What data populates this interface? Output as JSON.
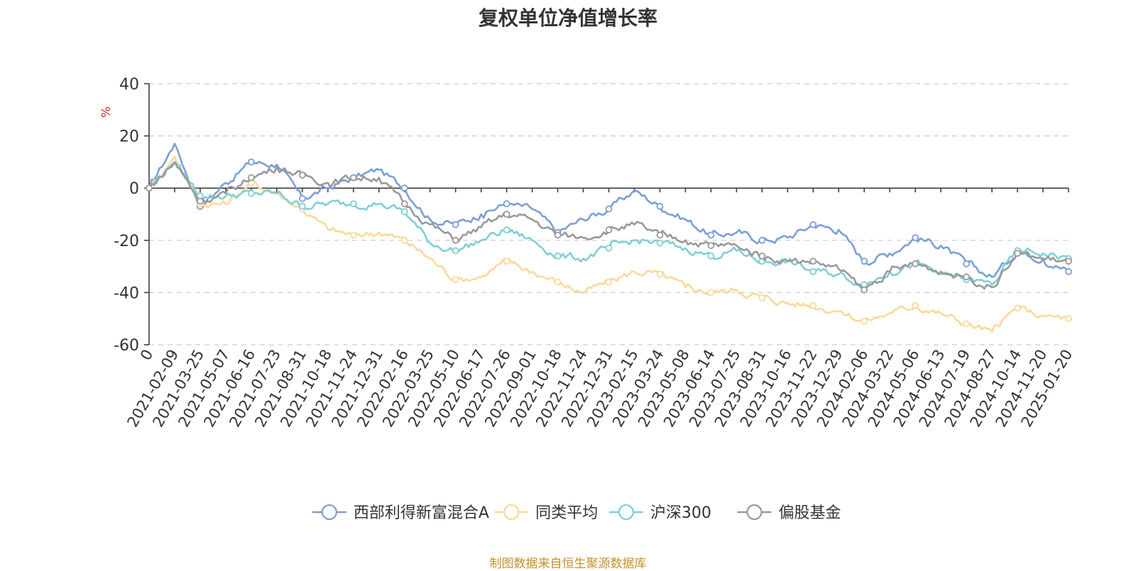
{
  "title": "复权单位净值增长率",
  "source_note": "制图数据来自恒生聚源数据库",
  "chart_data": {
    "type": "line",
    "title": "复权单位净值增长率",
    "ylabel": "%",
    "ylim": [
      -60,
      40
    ],
    "yticks": [
      40,
      20,
      0,
      -20,
      -40,
      -60
    ],
    "grid": true,
    "legend_position": "bottom",
    "x": [
      "0",
      "2021-02-09",
      "2021-03-25",
      "2021-05-07",
      "2021-06-16",
      "2021-07-23",
      "2021-08-31",
      "2021-10-18",
      "2021-11-24",
      "2021-12-31",
      "2022-02-16",
      "2022-03-25",
      "2022-05-10",
      "2022-06-17",
      "2022-07-26",
      "2022-09-01",
      "2022-10-18",
      "2022-11-24",
      "2022-12-31",
      "2023-02-15",
      "2023-03-24",
      "2023-05-08",
      "2023-06-14",
      "2023-07-25",
      "2023-08-31",
      "2023-10-16",
      "2023-11-22",
      "2023-12-29",
      "2024-02-06",
      "2024-03-22",
      "2024-05-06",
      "2024-06-13",
      "2024-07-19",
      "2024-08-27",
      "2024-10-14",
      "2024-11-20",
      "2025-01-20"
    ],
    "series": [
      {
        "name": "西部利得新富混合A",
        "color": "#7b9fd4",
        "values": [
          0,
          17,
          -7,
          2,
          10,
          9,
          -4,
          0,
          4,
          7,
          0,
          -12,
          -14,
          -10,
          -6,
          -8,
          -17,
          -12,
          -8,
          -1,
          -7,
          -12,
          -18,
          -17,
          -20,
          -19,
          -14,
          -16,
          -28,
          -25,
          -19,
          -22,
          -29,
          -34,
          -24,
          -27,
          -32
        ]
      },
      {
        "name": "同类平均",
        "color": "#fdd89a",
        "values": [
          0,
          12,
          -6,
          -6,
          2,
          -2,
          -8,
          -16,
          -18,
          -17,
          -20,
          -27,
          -35,
          -34,
          -28,
          -32,
          -36,
          -40,
          -36,
          -32,
          -33,
          -38,
          -40,
          -39,
          -42,
          -44,
          -45,
          -47,
          -51,
          -48,
          -45,
          -48,
          -52,
          -55,
          -46,
          -49,
          -50
        ]
      },
      {
        "name": "沪深300",
        "color": "#7fcfd6",
        "values": [
          0,
          10,
          -3,
          -3,
          -2,
          -2,
          -7,
          -6,
          -6,
          -6,
          -9,
          -21,
          -24,
          -20,
          -16,
          -20,
          -26,
          -27,
          -23,
          -20,
          -21,
          -23,
          -26,
          -24,
          -28,
          -28,
          -32,
          -33,
          -37,
          -32,
          -29,
          -33,
          -35,
          -37,
          -24,
          -25,
          -27
        ]
      },
      {
        "name": "偏股基金",
        "color": "#999999",
        "values": [
          0,
          10,
          -5,
          -2,
          4,
          8,
          5,
          2,
          4,
          4,
          -6,
          -14,
          -20,
          -15,
          -10,
          -12,
          -18,
          -19,
          -16,
          -14,
          -18,
          -20,
          -22,
          -22,
          -26,
          -28,
          -28,
          -31,
          -39,
          -32,
          -29,
          -32,
          -34,
          -38,
          -25,
          -27,
          -28
        ]
      }
    ]
  }
}
